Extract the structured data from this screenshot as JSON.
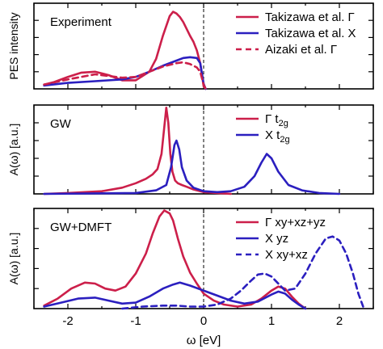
{
  "chart_data": [
    {
      "type": "line",
      "panel_label": "Experiment",
      "ylabel": "PES intensity",
      "xlabel": "",
      "xlim": [
        -2.5,
        2.5
      ],
      "ylim": [
        0,
        1.0
      ],
      "x_ticks": [
        -2,
        -1,
        0,
        1,
        2
      ],
      "fermi_line_x": 0,
      "legend_position": "top-right",
      "series": [
        {
          "name": "Takizawa et al. Γ",
          "color": "#cc1f4a",
          "style": "solid",
          "x": [
            -2.35,
            -2.2,
            -2.0,
            -1.8,
            -1.6,
            -1.4,
            -1.2,
            -1.0,
            -0.8,
            -0.7,
            -0.6,
            -0.5,
            -0.45,
            -0.4,
            -0.35,
            -0.3,
            -0.25,
            -0.2,
            -0.15,
            -0.1,
            -0.05,
            0.0,
            0.03
          ],
          "values": [
            0.05,
            0.08,
            0.14,
            0.19,
            0.2,
            0.16,
            0.1,
            0.1,
            0.2,
            0.35,
            0.62,
            0.85,
            0.9,
            0.88,
            0.84,
            0.78,
            0.7,
            0.62,
            0.55,
            0.45,
            0.3,
            0.03,
            0.0
          ]
        },
        {
          "name": "Takizawa et al. X",
          "color": "#2b1fbf",
          "style": "solid",
          "x": [
            -2.35,
            -2.0,
            -1.6,
            -1.2,
            -1.0,
            -0.8,
            -0.6,
            -0.4,
            -0.3,
            -0.2,
            -0.1,
            -0.05,
            0.0,
            0.03
          ],
          "values": [
            0.04,
            0.07,
            0.09,
            0.11,
            0.14,
            0.2,
            0.27,
            0.33,
            0.36,
            0.37,
            0.36,
            0.3,
            0.06,
            0.0
          ]
        },
        {
          "name": "Aizaki et al. Γ",
          "color": "#cc1f4a",
          "style": "dashed",
          "x": [
            -2.35,
            -2.0,
            -1.6,
            -1.2,
            -1.0,
            -0.8,
            -0.6,
            -0.4,
            -0.3,
            -0.2,
            -0.1,
            -0.05,
            0.0,
            0.03
          ],
          "values": [
            0.05,
            0.11,
            0.17,
            0.13,
            0.14,
            0.2,
            0.26,
            0.3,
            0.31,
            0.29,
            0.25,
            0.2,
            0.05,
            0.0
          ]
        }
      ]
    },
    {
      "type": "line",
      "panel_label": "GW",
      "ylabel": "A(ω) [a.u.]",
      "xlabel": "",
      "xlim": [
        -2.5,
        2.5
      ],
      "ylim": [
        0,
        1.0
      ],
      "x_ticks": [
        -2,
        -1,
        0,
        1,
        2
      ],
      "fermi_line_x": 0,
      "legend_position": "top-right",
      "series": [
        {
          "name": "Γ t2g",
          "color": "#cc1f4a",
          "style": "solid",
          "x": [
            -2.35,
            -2.0,
            -1.5,
            -1.2,
            -1.0,
            -0.85,
            -0.75,
            -0.68,
            -0.62,
            -0.58,
            -0.55,
            -0.52,
            -0.49,
            -0.46,
            -0.42,
            -0.38,
            -0.32,
            -0.25,
            -0.15,
            0.0,
            0.2,
            0.4
          ],
          "values": [
            0.0,
            0.01,
            0.03,
            0.07,
            0.12,
            0.17,
            0.22,
            0.28,
            0.45,
            0.75,
            0.97,
            0.8,
            0.45,
            0.25,
            0.15,
            0.12,
            0.1,
            0.08,
            0.05,
            0.02,
            0.01,
            0.0
          ]
        },
        {
          "name": "X t2g",
          "color": "#2b1fbf",
          "style": "solid",
          "x": [
            -2.35,
            -1.0,
            -0.7,
            -0.55,
            -0.48,
            -0.43,
            -0.4,
            -0.36,
            -0.32,
            -0.25,
            -0.15,
            0.0,
            0.2,
            0.4,
            0.6,
            0.75,
            0.85,
            0.93,
            1.0,
            1.1,
            1.25,
            1.45,
            1.7,
            2.0
          ],
          "values": [
            0.0,
            0.01,
            0.04,
            0.1,
            0.3,
            0.55,
            0.6,
            0.5,
            0.3,
            0.15,
            0.07,
            0.03,
            0.02,
            0.03,
            0.08,
            0.2,
            0.35,
            0.45,
            0.4,
            0.25,
            0.1,
            0.04,
            0.01,
            0.0
          ]
        }
      ]
    },
    {
      "type": "line",
      "panel_label": "GW+DMFT",
      "ylabel": "A(ω) [a.u.]",
      "xlabel": "ω [eV]",
      "xlim": [
        -2.5,
        2.5
      ],
      "ylim": [
        0,
        1.0
      ],
      "x_ticks": [
        -2,
        -1,
        0,
        1,
        2
      ],
      "x_tick_labels": [
        "-2",
        "-1",
        "0",
        "1",
        "2"
      ],
      "fermi_line_x": 0,
      "legend_position": "top-right",
      "series": [
        {
          "name": "Γ xy+xz+yz",
          "color": "#cc1f4a",
          "style": "solid",
          "x": [
            -2.35,
            -2.15,
            -1.95,
            -1.75,
            -1.6,
            -1.45,
            -1.3,
            -1.15,
            -1.0,
            -0.85,
            -0.75,
            -0.65,
            -0.58,
            -0.5,
            -0.45,
            -0.38,
            -0.3,
            -0.2,
            -0.1,
            0.0,
            0.15,
            0.3,
            0.5,
            0.7,
            0.85,
            1.0,
            1.1,
            1.2,
            1.3,
            1.4,
            1.5
          ],
          "values": [
            0.03,
            0.1,
            0.2,
            0.26,
            0.25,
            0.2,
            0.18,
            0.22,
            0.35,
            0.55,
            0.75,
            0.92,
            0.98,
            0.95,
            0.88,
            0.7,
            0.52,
            0.36,
            0.25,
            0.15,
            0.08,
            0.04,
            0.02,
            0.04,
            0.1,
            0.18,
            0.22,
            0.2,
            0.12,
            0.05,
            0.0
          ]
        },
        {
          "name": "X yz",
          "color": "#2b1fbf",
          "style": "solid",
          "x": [
            -2.35,
            -2.1,
            -1.85,
            -1.6,
            -1.4,
            -1.2,
            -1.0,
            -0.8,
            -0.6,
            -0.45,
            -0.35,
            -0.2,
            0.0,
            0.2,
            0.4,
            0.6,
            0.8,
            1.0,
            1.1,
            1.2,
            1.3,
            1.4,
            1.5
          ],
          "values": [
            0.02,
            0.06,
            0.1,
            0.11,
            0.08,
            0.05,
            0.06,
            0.12,
            0.2,
            0.24,
            0.26,
            0.23,
            0.18,
            0.13,
            0.08,
            0.05,
            0.07,
            0.14,
            0.17,
            0.15,
            0.09,
            0.04,
            0.0
          ]
        },
        {
          "name": "X xy+xz",
          "color": "#2b1fbf",
          "style": "dashed",
          "x": [
            -1.2,
            -0.9,
            -0.6,
            -0.4,
            -0.2,
            0.0,
            0.2,
            0.4,
            0.55,
            0.7,
            0.8,
            0.9,
            1.0,
            1.1,
            1.2,
            1.35,
            1.5,
            1.65,
            1.8,
            1.9,
            2.0,
            2.1,
            2.2,
            2.28,
            2.35
          ],
          "values": [
            0.0,
            0.02,
            0.03,
            0.03,
            0.02,
            0.02,
            0.04,
            0.1,
            0.18,
            0.28,
            0.34,
            0.35,
            0.32,
            0.25,
            0.18,
            0.2,
            0.35,
            0.55,
            0.7,
            0.72,
            0.68,
            0.55,
            0.35,
            0.15,
            0.02
          ]
        }
      ]
    }
  ]
}
